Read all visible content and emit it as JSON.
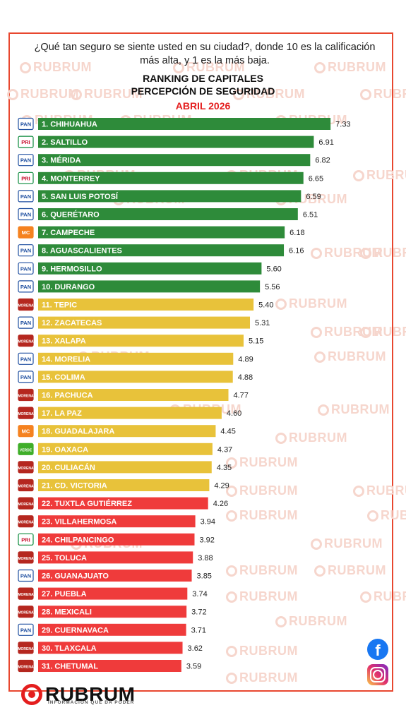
{
  "header": {
    "question": "¿Qué tan seguro se siente usted en su ciudad?, donde 10 es la calificación más alta, y  1 es la más baja.",
    "title_line1": "RANKING DE CAPITALES",
    "title_line2": "PERCEPCIÓN DE SEGURIDAD",
    "date": "ABRIL 2026"
  },
  "brand": {
    "name": "RUBRUM",
    "tagline": "INFORMACIÓN QUE DA PODER",
    "watermark": "RUBRUM"
  },
  "social": {
    "facebook": "f",
    "instagram": "instagram-icon"
  },
  "colors": {
    "green": "#2e8b3a",
    "yellow": "#e8c23a",
    "red": "#ef3b3b",
    "accent": "#e41e1e"
  },
  "chart_data": {
    "type": "bar",
    "orientation": "horizontal",
    "categories": [
      "1. CHIHUAHUA",
      "2. SALTILLO",
      "3. MÉRIDA",
      "4. MONTERREY",
      "5. SAN LUIS POTOSÍ",
      "6. QUERÉTARO",
      "7. CAMPECHE",
      "8. AGUASCALIENTES",
      "9. HERMOSILLO",
      "10. DURANGO",
      "11. TEPIC",
      "12. ZACATECAS",
      "13. XALAPA",
      "14. MORELIA",
      "15. COLIMA",
      "16. PACHUCA",
      "17. LA PAZ",
      "18. GUADALAJARA",
      "19. OAXACA",
      "20. CULIACÁN",
      "21. CD. VICTORIA",
      "22. TUXTLA GUTIÉRREZ",
      "23. VILLAHERMOSA",
      "24. CHILPANCINGO",
      "25. TOLUCA",
      "26. GUANAJUATO",
      "27. PUEBLA",
      "28. MEXICALI",
      "29. CUERNAVACA",
      "30. TLAXCALA",
      "31. CHETUMAL"
    ],
    "values": [
      7.33,
      6.91,
      6.82,
      6.65,
      6.59,
      6.51,
      6.18,
      6.16,
      5.6,
      5.56,
      5.4,
      5.31,
      5.15,
      4.89,
      4.88,
      4.77,
      4.6,
      4.45,
      4.37,
      4.35,
      4.29,
      4.26,
      3.94,
      3.92,
      3.88,
      3.85,
      3.74,
      3.72,
      3.71,
      3.62,
      3.59
    ],
    "value_labels": [
      "7.33",
      "6.91",
      "6.82",
      "6.65",
      "6.59",
      "6.51",
      "6.18",
      "6.16",
      "5.60",
      "5.56",
      "5.40",
      "5.31",
      "5.15",
      "4.89",
      "4.88",
      "4.77",
      "4.60",
      "4.45",
      "4.37",
      "4.35",
      "4.29",
      "4.26",
      "3.94",
      "3.92",
      "3.88",
      "3.85",
      "3.74",
      "3.72",
      "3.71",
      "3.62",
      "3.59"
    ],
    "party_icons": [
      "PAN",
      "PRI",
      "PAN",
      "PRI",
      "PAN",
      "PAN",
      "MC",
      "PAN",
      "PAN",
      "PAN",
      "MORENA",
      "PAN",
      "MORENA",
      "PAN",
      "PAN",
      "MORENA",
      "MORENA",
      "MC",
      "VERDE",
      "MORENA",
      "MORENA",
      "MORENA",
      "MORENA",
      "PRI",
      "MORENA",
      "PAN",
      "MORENA",
      "MORENA",
      "PAN",
      "MORENA",
      "MORENA"
    ],
    "bar_colors": [
      "green",
      "green",
      "green",
      "green",
      "green",
      "green",
      "green",
      "green",
      "green",
      "green",
      "yellow",
      "yellow",
      "yellow",
      "yellow",
      "yellow",
      "yellow",
      "yellow",
      "yellow",
      "yellow",
      "yellow",
      "yellow",
      "red",
      "red",
      "red",
      "red",
      "red",
      "red",
      "red",
      "red",
      "red",
      "red"
    ]
  }
}
